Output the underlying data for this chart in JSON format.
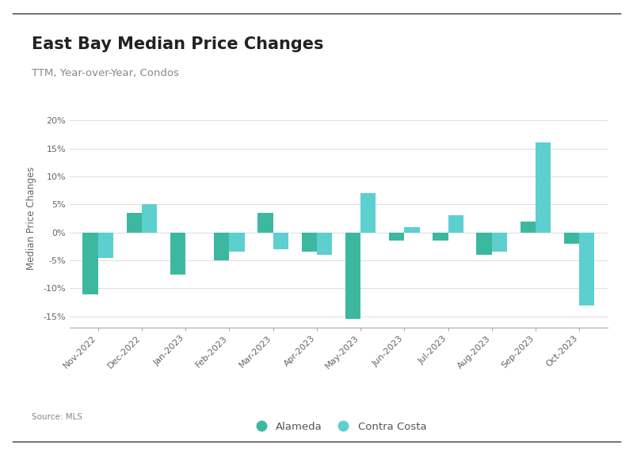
{
  "title": "East Bay Median Price Changes",
  "subtitle": "TTM, Year-over-Year, Condos",
  "ylabel": "Median Price Changes",
  "source": "Source: MLS",
  "categories": [
    "Nov-2022",
    "Dec-2022",
    "Jan-2023",
    "Feb-2023",
    "Mar-2023",
    "Apr-2023",
    "May-2023",
    "Jun-2023",
    "Jul-2023",
    "Aug-2023",
    "Sep-2023",
    "Oct-2023"
  ],
  "alameda": [
    -11.0,
    3.5,
    -7.5,
    -5.0,
    3.5,
    -3.5,
    -15.5,
    -1.5,
    -1.5,
    -4.0,
    2.0,
    -2.0
  ],
  "contra_costa": [
    -4.5,
    5.0,
    null,
    -3.5,
    -3.0,
    -4.0,
    7.0,
    1.0,
    3.0,
    -3.5,
    16.0,
    -13.0
  ],
  "alameda_color": "#3cb8a0",
  "contra_costa_color": "#5dcfce",
  "background_color": "#ffffff",
  "ylim_min": -17,
  "ylim_max": 22,
  "yticks": [
    -15,
    -10,
    -5,
    0,
    5,
    10,
    15,
    20
  ],
  "bar_width": 0.35,
  "title_fontsize": 15,
  "subtitle_fontsize": 9.5,
  "ylabel_fontsize": 8.5,
  "tick_fontsize": 8,
  "legend_fontsize": 9.5
}
